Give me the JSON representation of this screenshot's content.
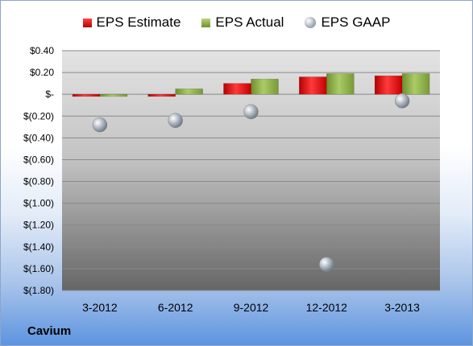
{
  "chart_data": {
    "type": "bar",
    "title": "",
    "xlabel": "",
    "ylabel": "",
    "categories": [
      "3-2012",
      "6-2012",
      "9-2012",
      "12-2012",
      "3-2013"
    ],
    "series": [
      {
        "name": "EPS Estimate",
        "kind": "bar",
        "color": "#e01b1b",
        "values": [
          -0.02,
          -0.02,
          0.1,
          0.16,
          0.17
        ]
      },
      {
        "name": "EPS Actual",
        "kind": "bar",
        "color": "#8fb24a",
        "values": [
          -0.02,
          0.05,
          0.14,
          0.19,
          0.19
        ]
      },
      {
        "name": "EPS GAAP",
        "kind": "scatter",
        "color": "#a8b0ba",
        "values": [
          -0.28,
          -0.24,
          -0.16,
          -1.56,
          -0.06
        ]
      }
    ],
    "ylim": [
      -1.8,
      0.4
    ],
    "y_ticks": [
      {
        "value": 0.4,
        "label": "$0.40"
      },
      {
        "value": 0.2,
        "label": "$0.20"
      },
      {
        "value": 0.0,
        "label": "$-"
      },
      {
        "value": -0.2,
        "label": "$(0.20)"
      },
      {
        "value": -0.4,
        "label": "$(0.40)"
      },
      {
        "value": -0.6,
        "label": "$(0.60)"
      },
      {
        "value": -0.8,
        "label": "$(0.80)"
      },
      {
        "value": -1.0,
        "label": "$(1.00)"
      },
      {
        "value": -1.2,
        "label": "$(1.20)"
      },
      {
        "value": -1.4,
        "label": "$(1.40)"
      },
      {
        "value": -1.6,
        "label": "$(1.60)"
      },
      {
        "value": -1.8,
        "label": "$(1.80)"
      }
    ],
    "grid": true,
    "legend_position": "top"
  },
  "legend": {
    "estimate": "EPS Estimate",
    "actual": "EPS Actual",
    "gaap": "EPS GAAP"
  },
  "company": "Cavium"
}
